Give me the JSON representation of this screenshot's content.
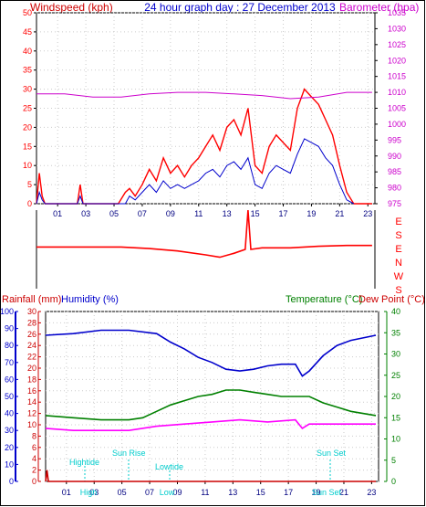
{
  "header": {
    "windspeed_label": "Windspeed (kph)",
    "title": "24 hour graph day : 27 December 2013",
    "barometer_label": "Barometer (hpa)"
  },
  "legend": {
    "rainfall_label": "Rainfall (mm)",
    "humidity_label": "Humidity (%)",
    "temperature_label": "Temperature (°C)",
    "dewpoint_label": "Dew Point (°C)"
  },
  "direction_labels": [
    "E",
    "S",
    "E",
    "N",
    "W",
    "S"
  ],
  "events": {
    "hightide": "Hightide",
    "sunrise": "Sun Rise",
    "lowtide": "Lowtide",
    "sunset": "Sun Set",
    "hightide_tick": "High",
    "lowtide_tick": "Low",
    "sunset_tick": "Sun Set"
  },
  "colors": {
    "wind": "#ff0000",
    "gust": "#0000cc",
    "barometer": "#cc00cc",
    "humidity": "#0000cc",
    "temperature": "#008000",
    "dewpoint": "#ff00ff",
    "rain": "#cc0000",
    "event": "#00cccc"
  },
  "chart_data": [
    {
      "type": "line",
      "title": "24 hour graph day : 27 December 2013",
      "x_ticks": [
        "01",
        "03",
        "05",
        "07",
        "09",
        "11",
        "13",
        "15",
        "17",
        "19",
        "21",
        "23"
      ],
      "x_range": [
        0,
        24
      ],
      "left_axis": {
        "label": "Windspeed (kph)",
        "range": [
          0,
          50
        ],
        "ticks": [
          0,
          5,
          10,
          15,
          20,
          25,
          30,
          35,
          40,
          45,
          50
        ]
      },
      "right_axis": {
        "label": "Barometer (hpa)",
        "range": [
          975,
          1035
        ],
        "ticks": [
          975,
          980,
          985,
          990,
          995,
          1000,
          1005,
          1010,
          1015,
          1020,
          1025,
          1030,
          1035
        ]
      },
      "series": [
        {
          "name": "Windspeed",
          "axis": "left",
          "x": [
            0,
            0.2,
            0.4,
            0.6,
            2.9,
            3.1,
            3.3,
            5.8,
            6.3,
            6.6,
            7.0,
            7.5,
            8.0,
            8.5,
            9.0,
            9.5,
            10.0,
            10.5,
            11.0,
            11.5,
            12.0,
            12.5,
            13.0,
            13.5,
            14.0,
            14.5,
            15.0,
            15.5,
            16.0,
            16.5,
            17.0,
            17.5,
            18.0,
            18.5,
            19.0,
            19.5,
            20.0,
            20.5,
            21.0,
            21.5,
            22.0,
            22.5,
            23.0,
            23.8
          ],
          "y": [
            0,
            8,
            2,
            0,
            0,
            5,
            0,
            0,
            3,
            4,
            2,
            5,
            9,
            6,
            12,
            8,
            10,
            7,
            10,
            12,
            15,
            18,
            14,
            20,
            22,
            18,
            25,
            10,
            8,
            15,
            18,
            16,
            14,
            25,
            30,
            28,
            26,
            22,
            18,
            10,
            3,
            0,
            0,
            0
          ]
        },
        {
          "name": "Gust",
          "axis": "left",
          "x": [
            0,
            0.2,
            0.4,
            0.6,
            2.9,
            3.1,
            3.3,
            6.3,
            6.6,
            7.0,
            7.5,
            8.0,
            8.5,
            9.0,
            9.5,
            10.0,
            10.5,
            11.0,
            11.5,
            12.0,
            12.5,
            13.0,
            13.5,
            14.0,
            14.5,
            15.0,
            15.5,
            16.0,
            16.5,
            17.0,
            17.5,
            18.0,
            18.5,
            19.0,
            19.5,
            20.0,
            20.5,
            21.0,
            21.5,
            22.0,
            22.5
          ],
          "y": [
            0,
            3,
            1,
            0,
            0,
            2,
            0,
            0,
            2,
            1,
            3,
            5,
            3,
            6,
            4,
            5,
            4,
            5,
            6,
            8,
            9,
            7,
            10,
            11,
            9,
            12,
            5,
            4,
            8,
            10,
            9,
            8,
            13,
            17,
            16,
            15,
            12,
            10,
            5,
            1,
            0
          ]
        },
        {
          "name": "Barometer",
          "axis": "right",
          "x": [
            0,
            2,
            4,
            6,
            8,
            10,
            12,
            14,
            16,
            18,
            20,
            22,
            23.8
          ],
          "y": [
            1009.5,
            1009.5,
            1008.5,
            1008.5,
            1009.5,
            1010,
            1010,
            1009.5,
            1009,
            1008,
            1008.5,
            1010,
            1010
          ]
        }
      ]
    },
    {
      "type": "line",
      "title": "Wind direction",
      "y_ticks": [
        "E",
        "S",
        "E",
        "N",
        "W",
        "S"
      ],
      "series": [
        {
          "name": "Wind direction",
          "x": [
            0,
            6,
            8,
            10,
            12,
            13,
            14,
            14.8,
            15,
            15.2,
            16,
            18,
            20,
            22,
            23.8
          ],
          "y": [
            0.47,
            0.47,
            0.49,
            0.52,
            0.57,
            0.6,
            0.55,
            0.5,
            0.0,
            0.5,
            0.48,
            0.48,
            0.46,
            0.45,
            0.45
          ]
        }
      ]
    },
    {
      "type": "line",
      "x_ticks": [
        "01",
        "03",
        "05",
        "07",
        "09",
        "11",
        "13",
        "15",
        "17",
        "19",
        "21",
        "23"
      ],
      "x_range": [
        0,
        24
      ],
      "axes": [
        {
          "label": "Humidity (%)",
          "range": [
            0,
            100
          ],
          "ticks": [
            0,
            10,
            20,
            30,
            40,
            50,
            60,
            70,
            80,
            90,
            100
          ]
        },
        {
          "label": "Rainfall (mm)",
          "range": [
            0,
            30
          ],
          "ticks": [
            0,
            2,
            4,
            6,
            8,
            10,
            12,
            14,
            16,
            18,
            20,
            22,
            24,
            26,
            28,
            30
          ]
        },
        {
          "label": "Temperature (°C)",
          "range": [
            0,
            40
          ],
          "ticks": [
            0,
            5,
            10,
            15,
            20,
            25,
            30,
            35,
            40
          ]
        }
      ],
      "series": [
        {
          "name": "Humidity",
          "axis": "Humidity (%)",
          "x": [
            0,
            2,
            4,
            6,
            8,
            9,
            10,
            11,
            12,
            13,
            14,
            15,
            16,
            17,
            18,
            18.5,
            19,
            20,
            21,
            22,
            23.8
          ],
          "y": [
            86,
            87,
            89,
            89,
            87,
            82,
            78,
            73,
            70,
            66,
            65,
            66,
            68,
            69,
            69,
            62,
            65,
            74,
            80,
            83,
            86
          ]
        },
        {
          "name": "Temperature",
          "axis": "Temperature (°C)",
          "x": [
            0,
            2,
            4,
            6,
            7,
            8,
            9,
            10,
            11,
            12,
            13,
            14,
            15,
            16,
            17,
            18,
            19,
            20,
            21,
            22,
            23.8
          ],
          "y": [
            15.5,
            15,
            14.5,
            14.5,
            15,
            16.5,
            18,
            19,
            20,
            20.5,
            21.5,
            21.5,
            21,
            20.5,
            20,
            20,
            20,
            18.5,
            17.5,
            16.5,
            15.5
          ]
        },
        {
          "name": "Dew Point",
          "axis": "Temperature (°C)",
          "x": [
            0,
            2,
            4,
            6,
            8,
            10,
            12,
            14,
            16,
            18,
            18.5,
            19,
            20,
            22,
            23.8
          ],
          "y": [
            12.5,
            12,
            12,
            12,
            13,
            13.5,
            14,
            14.5,
            14,
            14.5,
            12.5,
            13.5,
            13.5,
            13.5,
            13.5
          ]
        },
        {
          "name": "Rainfall",
          "axis": "Rainfall (mm)",
          "x": [
            0,
            0.1,
            0.2,
            0.3,
            23.8
          ],
          "y": [
            0,
            2,
            0,
            0,
            0
          ]
        }
      ]
    }
  ]
}
